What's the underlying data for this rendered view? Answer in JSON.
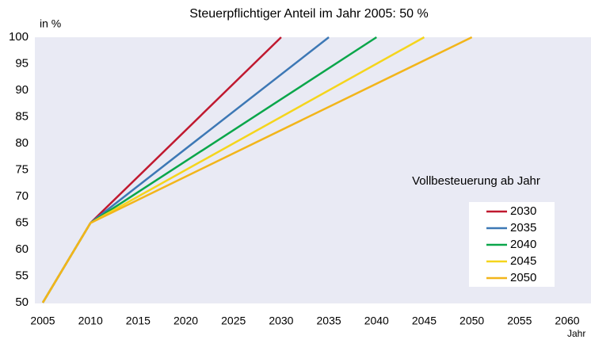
{
  "chart_data": {
    "type": "line",
    "title": "Steuerpflichtiger Anteil im Jahr 2005: 50 %",
    "y_label": "in %",
    "x_label": "Jahr",
    "legend_title": "Vollbesteuerung ab Jahr",
    "legend_position": "lower right",
    "xlim": [
      2005,
      2060
    ],
    "xticks": [
      2005,
      2010,
      2015,
      2020,
      2025,
      2030,
      2035,
      2040,
      2045,
      2050,
      2055,
      2060
    ],
    "ylim": [
      50,
      100
    ],
    "yticks": [
      50,
      55,
      60,
      65,
      70,
      75,
      80,
      85,
      90,
      95,
      100
    ],
    "series": [
      {
        "name": "2030",
        "color": "#c0192f",
        "x": [
          2005,
          2010,
          2030
        ],
        "values": [
          50,
          65,
          100
        ]
      },
      {
        "name": "2035",
        "color": "#3d78b5",
        "x": [
          2005,
          2010,
          2035
        ],
        "values": [
          50,
          65,
          100
        ]
      },
      {
        "name": "2040",
        "color": "#0aa64a",
        "x": [
          2005,
          2010,
          2040
        ],
        "values": [
          50,
          65,
          100
        ]
      },
      {
        "name": "2045",
        "color": "#f5d51c",
        "x": [
          2005,
          2010,
          2045
        ],
        "values": [
          50,
          65,
          100
        ]
      },
      {
        "name": "2050",
        "color": "#f2b51a",
        "x": [
          2005,
          2010,
          2050
        ],
        "values": [
          50,
          65,
          100
        ]
      }
    ]
  }
}
